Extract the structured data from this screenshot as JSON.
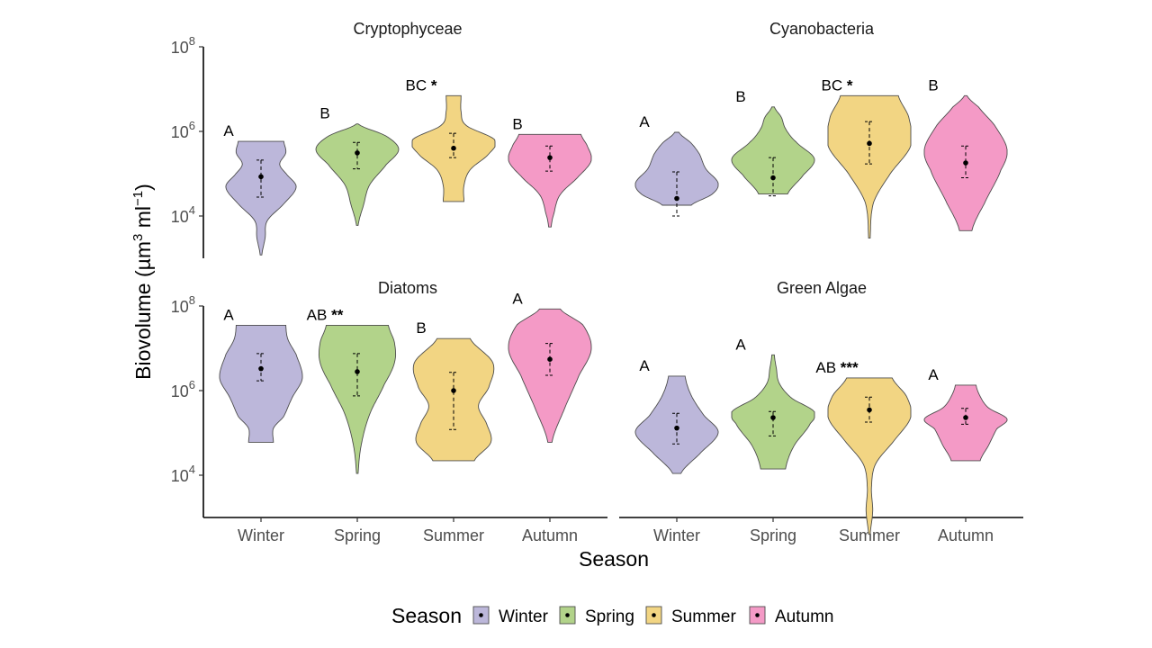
{
  "chart_data": {
    "type": "violin",
    "x_title": "Season",
    "y_title_parts": {
      "base": "Biovolume (µm",
      "sup1": "3",
      "mid": " ml",
      "sup2": "−1",
      "end": ")"
    },
    "y_scale": "log10",
    "y_ticks": [
      {
        "base": "10",
        "exp": "4",
        "value": 10000
      },
      {
        "base": "10",
        "exp": "6",
        "value": 1000000
      },
      {
        "base": "10",
        "exp": "8",
        "value": 100000000
      }
    ],
    "ylim": [
      1000,
      100000000
    ],
    "categories": [
      "Winter",
      "Spring",
      "Summer",
      "Autumn"
    ],
    "colors": {
      "Winter": "#bcb7da",
      "Spring": "#b2d38a",
      "Summer": "#f2d583",
      "Autumn": "#f49ac6"
    },
    "legend": {
      "title": "Season",
      "position": "bottom",
      "entries": [
        "Winter",
        "Spring",
        "Summer",
        "Autumn"
      ]
    },
    "panels": [
      {
        "title": "Cryptophyceae",
        "violins": [
          {
            "season": "Winter",
            "min": 1200,
            "max": 580000,
            "mean": 85000,
            "lower": 28000,
            "upper": 210000,
            "label": "A",
            "profile": [
              [
                0,
                0.02
              ],
              [
                0.15,
                0.1
              ],
              [
                0.3,
                0.15
              ],
              [
                0.45,
                0.55
              ],
              [
                0.6,
                0.85
              ],
              [
                0.72,
                0.6
              ],
              [
                0.8,
                0.45
              ],
              [
                0.9,
                0.6
              ],
              [
                1,
                0.55
              ]
            ]
          },
          {
            "season": "Spring",
            "min": 6000,
            "max": 1500000,
            "mean": 310000,
            "lower": 130000,
            "upper": 550000,
            "label": "B",
            "profile": [
              [
                0,
                0.02
              ],
              [
                0.2,
                0.15
              ],
              [
                0.4,
                0.3
              ],
              [
                0.6,
                0.7
              ],
              [
                0.75,
                1
              ],
              [
                0.88,
                0.7
              ],
              [
                1,
                0.02
              ]
            ]
          },
          {
            "season": "Summer",
            "min": 22000,
            "max": 7000000,
            "mean": 400000,
            "lower": 240000,
            "upper": 900000,
            "label": "BC *",
            "profile": [
              [
                0,
                0.25
              ],
              [
                0.15,
                0.25
              ],
              [
                0.3,
                0.4
              ],
              [
                0.45,
                0.85
              ],
              [
                0.58,
                1
              ],
              [
                0.72,
                0.3
              ],
              [
                0.85,
                0.18
              ],
              [
                1,
                0.18
              ]
            ]
          },
          {
            "season": "Autumn",
            "min": 5500,
            "max": 850000,
            "mean": 240000,
            "lower": 115000,
            "upper": 450000,
            "label": "B",
            "profile": [
              [
                0,
                0.03
              ],
              [
                0.15,
                0.1
              ],
              [
                0.35,
                0.25
              ],
              [
                0.55,
                0.7
              ],
              [
                0.72,
                1
              ],
              [
                0.88,
                0.9
              ],
              [
                1,
                0.75
              ]
            ]
          }
        ]
      },
      {
        "title": "Cyanobacteria",
        "violins": [
          {
            "season": "Winter",
            "min": 18000,
            "max": 950000,
            "mean": 26000,
            "lower": 10000,
            "upper": 110000,
            "label": "A",
            "profile": [
              [
                0,
                0.35
              ],
              [
                0.15,
                0.85
              ],
              [
                0.3,
                1
              ],
              [
                0.5,
                0.7
              ],
              [
                0.7,
                0.55
              ],
              [
                0.85,
                0.35
              ],
              [
                1,
                0.05
              ]
            ]
          },
          {
            "season": "Spring",
            "min": 33000,
            "max": 3800000,
            "mean": 80000,
            "lower": 30000,
            "upper": 240000,
            "label": "B",
            "profile": [
              [
                0,
                0.35
              ],
              [
                0.2,
                0.7
              ],
              [
                0.4,
                1
              ],
              [
                0.6,
                0.55
              ],
              [
                0.75,
                0.3
              ],
              [
                0.88,
                0.2
              ],
              [
                1,
                0.03
              ]
            ]
          },
          {
            "season": "Summer",
            "min": 3000,
            "max": 7000000,
            "mean": 520000,
            "lower": 170000,
            "upper": 1700000,
            "label": "BC *",
            "profile": [
              [
                0,
                0.02
              ],
              [
                0.25,
                0.1
              ],
              [
                0.45,
                0.5
              ],
              [
                0.65,
                1
              ],
              [
                0.85,
                0.95
              ],
              [
                1,
                0.7
              ]
            ]
          },
          {
            "season": "Autumn",
            "min": 4500,
            "max": 7000000,
            "mean": 180000,
            "lower": 80000,
            "upper": 450000,
            "label": "B",
            "profile": [
              [
                0,
                0.15
              ],
              [
                0.2,
                0.45
              ],
              [
                0.45,
                0.85
              ],
              [
                0.6,
                1
              ],
              [
                0.78,
                0.7
              ],
              [
                0.92,
                0.3
              ],
              [
                1,
                0.03
              ]
            ]
          }
        ]
      },
      {
        "title": "Diatoms",
        "violins": [
          {
            "season": "Winter",
            "min": 60000,
            "max": 35000000,
            "mean": 3300000,
            "lower": 1700000,
            "upper": 7500000,
            "label": "A",
            "profile": [
              [
                0,
                0.3
              ],
              [
                0.12,
                0.3
              ],
              [
                0.22,
                0.55
              ],
              [
                0.38,
                0.75
              ],
              [
                0.55,
                1
              ],
              [
                0.75,
                0.85
              ],
              [
                0.88,
                0.65
              ],
              [
                1,
                0.6
              ]
            ]
          },
          {
            "season": "Spring",
            "min": 11000,
            "max": 35000000,
            "mean": 2800000,
            "lower": 750000,
            "upper": 7500000,
            "label": "AB **",
            "profile": [
              [
                0,
                0.02
              ],
              [
                0.2,
                0.1
              ],
              [
                0.4,
                0.3
              ],
              [
                0.6,
                0.65
              ],
              [
                0.75,
                0.9
              ],
              [
                0.88,
                0.9
              ],
              [
                1,
                0.75
              ]
            ]
          },
          {
            "season": "Summer",
            "min": 22000,
            "max": 17000000,
            "mean": 1000000,
            "lower": 120000,
            "upper": 2700000,
            "label": "B",
            "profile": [
              [
                0,
                0.5
              ],
              [
                0.15,
                0.9
              ],
              [
                0.3,
                0.8
              ],
              [
                0.45,
                0.6
              ],
              [
                0.6,
                0.85
              ],
              [
                0.8,
                0.95
              ],
              [
                1,
                0.4
              ]
            ]
          },
          {
            "season": "Autumn",
            "min": 60000,
            "max": 85000000,
            "mean": 5500000,
            "lower": 2300000,
            "upper": 13000000,
            "label": "A",
            "profile": [
              [
                0,
                0.05
              ],
              [
                0.25,
                0.35
              ],
              [
                0.5,
                0.7
              ],
              [
                0.7,
                1
              ],
              [
                0.88,
                0.8
              ],
              [
                1,
                0.25
              ]
            ]
          }
        ]
      },
      {
        "title": "Green Algae",
        "violins": [
          {
            "season": "Winter",
            "min": 11000,
            "max": 2200000,
            "mean": 130000,
            "lower": 55000,
            "upper": 290000,
            "label": "A",
            "profile": [
              [
                0,
                0.1
              ],
              [
                0.2,
                0.55
              ],
              [
                0.42,
                1
              ],
              [
                0.6,
                0.65
              ],
              [
                0.8,
                0.35
              ],
              [
                1,
                0.2
              ]
            ]
          },
          {
            "season": "Spring",
            "min": 14000,
            "max": 7000000,
            "mean": 230000,
            "lower": 85000,
            "upper": 320000,
            "label": "A",
            "profile": [
              [
                0,
                0.3
              ],
              [
                0.2,
                0.5
              ],
              [
                0.4,
                0.9
              ],
              [
                0.5,
                1
              ],
              [
                0.62,
                0.45
              ],
              [
                0.75,
                0.15
              ],
              [
                0.88,
                0.08
              ],
              [
                1,
                0.03
              ]
            ]
          },
          {
            "season": "Summer",
            "min": 400,
            "max": 2000000,
            "mean": 350000,
            "lower": 180000,
            "upper": 700000,
            "label": "AB ***",
            "profile": [
              [
                0,
                0.02
              ],
              [
                0.15,
                0.08
              ],
              [
                0.3,
                0.05
              ],
              [
                0.45,
                0.15
              ],
              [
                0.6,
                0.6
              ],
              [
                0.75,
                1
              ],
              [
                0.88,
                0.9
              ],
              [
                1,
                0.55
              ]
            ]
          },
          {
            "season": "Autumn",
            "min": 22000,
            "max": 1350000,
            "mean": 230000,
            "lower": 160000,
            "upper": 380000,
            "label": "A",
            "profile": [
              [
                0,
                0.35
              ],
              [
                0.2,
                0.55
              ],
              [
                0.42,
                0.75
              ],
              [
                0.55,
                1
              ],
              [
                0.7,
                0.55
              ],
              [
                0.85,
                0.35
              ],
              [
                1,
                0.25
              ]
            ]
          }
        ]
      }
    ]
  }
}
